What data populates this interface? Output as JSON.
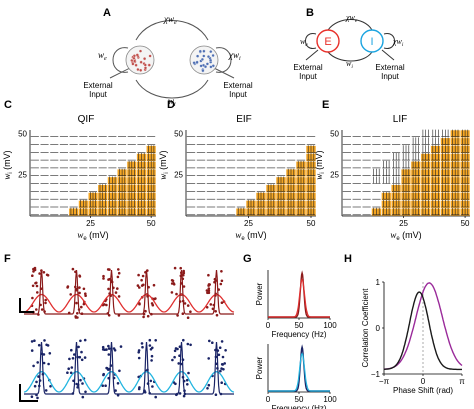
{
  "panels": {
    "A": {
      "label": "A",
      "w_top": "χw",
      "w_top_sub": "e",
      "w_left": "w",
      "w_left_sub": "e",
      "w_right": "χw",
      "w_right_sub": "i",
      "w_bottom": "w",
      "w_bottom_sub": "i",
      "input_left": [
        "External",
        "Input"
      ],
      "input_right": [
        "External",
        "Input"
      ],
      "colors": {
        "excitatory": "#c0504d",
        "inhibitory": "#4f6fb3"
      }
    },
    "B": {
      "label": "B",
      "node_e": "E",
      "node_i": "I",
      "w_top": "χw",
      "w_top_sub": "e",
      "w_left": "w",
      "w_left_sub": "e",
      "w_right": "χw",
      "w_right_sub": "i",
      "w_bottom": "w",
      "w_bottom_sub": "i",
      "input_left": [
        "External",
        "Input"
      ],
      "input_right": [
        "External",
        "Input"
      ],
      "colors": {
        "excitatory": "#e8302a",
        "inhibitory": "#1ba4e0"
      }
    }
  },
  "chart_data": [
    {
      "panel": "C",
      "type": "heatmap",
      "title": "QIF",
      "xlabel": "w",
      "xlabel_sub": "e",
      "xlabel_unit": "(mV)",
      "ylabel": "w",
      "ylabel_sub": "i",
      "ylabel_unit": "(mV)",
      "xticks": [
        25,
        50
      ],
      "yticks": [
        25,
        50
      ],
      "xlim": [
        0,
        52
      ],
      "ylim": [
        0,
        52
      ],
      "grid_cols": 13,
      "grid_rows": 11,
      "oscillation_start_col": [
        4,
        5,
        6,
        7,
        8,
        9,
        10,
        11,
        12,
        13,
        13
      ],
      "highlight_color": "#f5a623"
    },
    {
      "panel": "D",
      "type": "heatmap",
      "title": "EIF",
      "xlabel": "w",
      "xlabel_sub": "e",
      "xlabel_unit": "(mV)",
      "ylabel": "w",
      "ylabel_sub": "i",
      "ylabel_unit": "(mV)",
      "xticks": [
        25,
        50
      ],
      "yticks": [
        25,
        50
      ],
      "xlim": [
        0,
        52
      ],
      "ylim": [
        0,
        52
      ],
      "grid_cols": 13,
      "grid_rows": 11,
      "oscillation_start_col": [
        5,
        6,
        7,
        8,
        9,
        10,
        11,
        12,
        12,
        13,
        13
      ],
      "highlight_color": "#f5a623"
    },
    {
      "panel": "E",
      "type": "heatmap",
      "title": "LIF",
      "xlabel": "w",
      "xlabel_sub": "e",
      "xlabel_unit": "(mV)",
      "ylabel": "w",
      "ylabel_sub": "i",
      "ylabel_unit": "(mV)",
      "xticks": [
        25,
        50
      ],
      "yticks": [
        25,
        50
      ],
      "xlim": [
        0,
        52
      ],
      "ylim": [
        0,
        52
      ],
      "grid_cols": 13,
      "grid_rows": 11,
      "oscillation_start_col": [
        3,
        4,
        4,
        5,
        6,
        6,
        7,
        8,
        9,
        10,
        11
      ],
      "highlight_color": "#f5a623"
    },
    {
      "panel": "F",
      "type": "scatter",
      "title": "",
      "cycles": 6,
      "series": [
        {
          "row": "top",
          "color_dots": "#8b1a1a",
          "color_line": "#e03030"
        },
        {
          "row": "bottom",
          "color_dots": "#1a2466",
          "color_line": "#22b5e0"
        }
      ]
    },
    {
      "panel": "G",
      "type": "line",
      "title": "",
      "xlabel": "Frequency (Hz)",
      "ylabel": "Power",
      "xticks": [
        0,
        50,
        100
      ],
      "xlim": [
        0,
        100
      ],
      "peak_frequency": 55,
      "series": [
        {
          "row": "top",
          "color_outer": "#8b1a1a",
          "color_inner": "#e03030"
        },
        {
          "row": "bottom",
          "color_outer": "#1a2466",
          "color_inner": "#22b5e0"
        }
      ]
    },
    {
      "panel": "H",
      "type": "line",
      "title": "",
      "xlabel": "Phase Shift (rad)",
      "ylabel": "Correlation Coefficient",
      "xticks": [
        "−π",
        "0",
        "π"
      ],
      "yticks": [
        "−1",
        "0",
        "1"
      ],
      "xlim": [
        -3.1416,
        3.1416
      ],
      "ylim": [
        -1,
        1
      ],
      "series": [
        {
          "name": "",
          "color": "#9a2a9a",
          "peak_x": 0.5,
          "peak_y": 0.98
        },
        {
          "name": "",
          "color": "#1a1a1a",
          "peak_x": -0.3,
          "peak_y": 0.78
        }
      ]
    }
  ]
}
